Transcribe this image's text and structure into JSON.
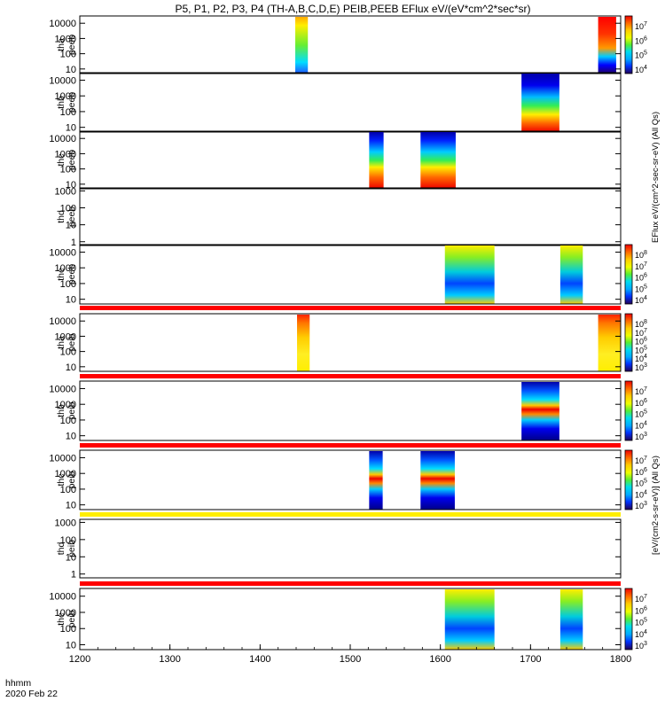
{
  "chart_data": {
    "type": "heatmap",
    "title": "P5, P1, P2, P3, P4 (TH-A,B,C,D,E) PEIB,PEEB EFlux eV/(eV*cm^2*sec*sr)",
    "time_label": "hhmm",
    "date_label": "2020 Feb 22",
    "xlim": [
      1200,
      1800
    ],
    "x_ticks": [
      "1200",
      "1300",
      "1400",
      "1500",
      "1600",
      "1700",
      "1800"
    ],
    "colorbar_labels": {
      "electron": "EFlux eV/(cm^2-sec-sr-eV) (All Qs)",
      "ion": "[eV/(cm2-s-sr-eV)] (All Qs)"
    },
    "panels": [
      {
        "label": [
          "tha",
          "peeb"
        ],
        "yticks": [
          "10000",
          "1000",
          "100",
          "10"
        ],
        "ymin": 5,
        "ymax": 30000,
        "blocks": [
          {
            "t0": 1439,
            "t1": 1453,
            "style": "a_e"
          },
          {
            "t0": 1775,
            "t1": 1795,
            "style": "hot"
          }
        ],
        "cbar": {
          "labels": [
            "10^7",
            "10^6",
            "10^5",
            "10^4"
          ]
        }
      },
      {
        "label": [
          "thb",
          "peeb"
        ],
        "yticks": [
          "10000",
          "1000",
          "100",
          "10"
        ],
        "ymin": 5,
        "ymax": 30000,
        "blocks": [
          {
            "t0": 1690,
            "t1": 1732,
            "style": "be"
          }
        ],
        "cbar": null
      },
      {
        "label": [
          "thc",
          "peeb"
        ],
        "yticks": [
          "10000",
          "1000",
          "100",
          "10"
        ],
        "ymin": 5,
        "ymax": 30000,
        "blocks": [
          {
            "t0": 1521,
            "t1": 1537,
            "style": "ce"
          },
          {
            "t0": 1578,
            "t1": 1617,
            "style": "ce"
          }
        ],
        "cbar": null
      },
      {
        "label": [
          "thd",
          "peeb"
        ],
        "yticks": [
          "1000",
          "100",
          "10",
          "1"
        ],
        "ymin": 0.6,
        "ymax": 1500,
        "blocks": [],
        "cbar": null
      },
      {
        "label": [
          "the",
          "peeb"
        ],
        "yticks": [
          "10000",
          "1000",
          "100",
          "10"
        ],
        "ymin": 5,
        "ymax": 30000,
        "blocks": [
          {
            "t0": 1605,
            "t1": 1660,
            "style": "ee"
          },
          {
            "t0": 1733,
            "t1": 1758,
            "style": "ee"
          }
        ],
        "cbar": {
          "labels": [
            "10^8",
            "10^7",
            "10^6",
            "10^5",
            "10^4"
          ]
        }
      },
      {
        "label": [
          "tha",
          "peib"
        ],
        "yticks": [
          "10000",
          "1000",
          "100",
          "10"
        ],
        "ymin": 5,
        "ymax": 30000,
        "blocks": [
          {
            "t0": 1441,
            "t1": 1455,
            "style": "ai"
          },
          {
            "t0": 1775,
            "t1": 1800,
            "style": "ai"
          }
        ],
        "cbar": {
          "labels": [
            "10^8",
            "10^7",
            "10^6",
            "10^5",
            "10^4",
            "10^3"
          ]
        }
      },
      {
        "label": [
          "thb",
          "peib"
        ],
        "yticks": [
          "10000",
          "1000",
          "100",
          "10"
        ],
        "ymin": 5,
        "ymax": 30000,
        "blocks": [
          {
            "t0": 1690,
            "t1": 1732,
            "style": "bi"
          }
        ],
        "cbar": {
          "labels": [
            "10^7",
            "10^6",
            "10^5",
            "10^4",
            "10^3"
          ]
        }
      },
      {
        "label": [
          "thc",
          "peib"
        ],
        "yticks": [
          "10000",
          "1000",
          "100",
          "10"
        ],
        "ymin": 5,
        "ymax": 30000,
        "blocks": [
          {
            "t0": 1521,
            "t1": 1536,
            "style": "bi"
          },
          {
            "t0": 1578,
            "t1": 1616,
            "style": "bi"
          }
        ],
        "cbar": {
          "labels": [
            "10^7",
            "10^6",
            "10^5",
            "10^4",
            "10^3"
          ]
        }
      },
      {
        "label": [
          "thd",
          "peib"
        ],
        "yticks": [
          "1000",
          "100",
          "10",
          "1"
        ],
        "ymin": 0.6,
        "ymax": 1500,
        "blocks": [],
        "cbar": null
      },
      {
        "label": [
          "the",
          "peib"
        ],
        "yticks": [
          "10000",
          "1000",
          "100",
          "10"
        ],
        "ymin": 5,
        "ymax": 30000,
        "blocks": [
          {
            "t0": 1605,
            "t1": 1660,
            "style": "ee"
          },
          {
            "t0": 1733,
            "t1": 1758,
            "style": "ee"
          }
        ],
        "cbar": {
          "labels": [
            "10^7",
            "10^6",
            "10^5",
            "10^4",
            "10^3"
          ]
        }
      }
    ],
    "separator_colors": [
      "#ff0000",
      "#ff0000",
      "#ff0000",
      "#ffee00",
      "#ff0000"
    ]
  }
}
